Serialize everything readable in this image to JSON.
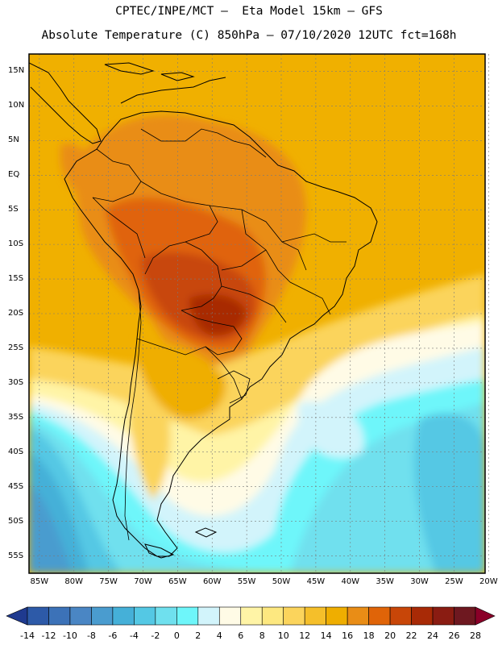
{
  "title": {
    "line1": "CPTEC/INPE/MCT –  Eta Model 15km – GFS",
    "line2": "Absolute Temperature (C) 850hPa – 07/10/2020 12UTC fct=168h"
  },
  "axes": {
    "lat_labels": [
      "15N",
      "10N",
      "5N",
      "EQ",
      "5S",
      "10S",
      "15S",
      "20S",
      "25S",
      "30S",
      "35S",
      "40S",
      "45S",
      "50S",
      "55S"
    ],
    "lat_values": [
      15,
      10,
      5,
      0,
      -5,
      -10,
      -15,
      -20,
      -25,
      -30,
      -35,
      -40,
      -45,
      -50,
      -55
    ],
    "lon_labels": [
      "85W",
      "80W",
      "75W",
      "70W",
      "65W",
      "60W",
      "55W",
      "50W",
      "45W",
      "40W",
      "35W",
      "30W",
      "25W",
      "20W"
    ],
    "lon_values": [
      -85,
      -80,
      -75,
      -70,
      -65,
      -60,
      -55,
      -50,
      -45,
      -40,
      -35,
      -30,
      -25,
      -20
    ],
    "lat_range": [
      -57.5,
      17.5
    ],
    "lon_range": [
      -86.5,
      -20.5
    ]
  },
  "colorbar": {
    "labels": [
      "-14",
      "-12",
      "-10",
      "-8",
      "-6",
      "-4",
      "-2",
      "0",
      "2",
      "4",
      "6",
      "8",
      "10",
      "12",
      "14",
      "16",
      "18",
      "20",
      "22",
      "24",
      "26",
      "28"
    ],
    "colors": [
      "#1f3a8f",
      "#2d5aa8",
      "#3c72b8",
      "#4a86c4",
      "#4a9ccf",
      "#45b0d8",
      "#54c8e4",
      "#6fe0ee",
      "#6ef6fa",
      "#d2f4fb",
      "#fffbe6",
      "#fff4a6",
      "#fde880",
      "#fbd45c",
      "#f5bf2a",
      "#efae00",
      "#e98d16",
      "#e06408",
      "#c84608",
      "#a82a06",
      "#8a1c12",
      "#6e1820",
      "#8a0028"
    ]
  },
  "colors": {
    "land_border": "#000000",
    "grid": "#7a7a7a"
  }
}
